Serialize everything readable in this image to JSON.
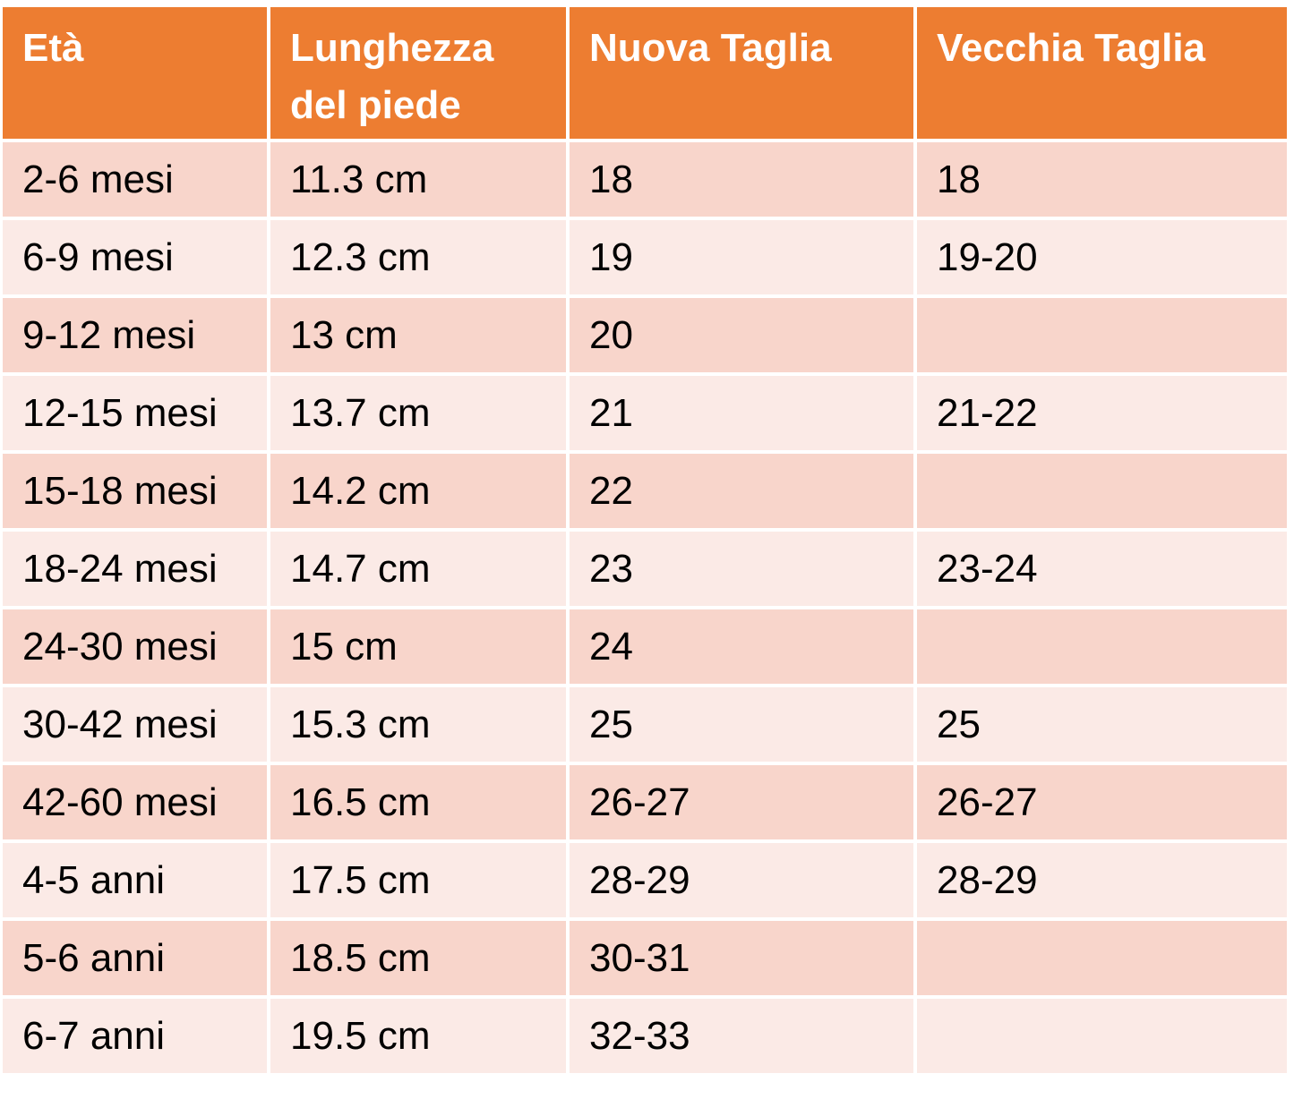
{
  "table": {
    "header": [
      "Età",
      "Lunghezza del piede",
      "Nuova Taglia",
      "Vecchia Taglia"
    ],
    "rows": [
      [
        "2-6 mesi",
        "11.3 cm",
        "18",
        "18"
      ],
      [
        "6-9 mesi",
        "12.3 cm",
        "19",
        "19-20"
      ],
      [
        "9-12 mesi",
        "13 cm",
        "20",
        null
      ],
      [
        "12-15 mesi",
        "13.7 cm",
        "21",
        "21-22"
      ],
      [
        "15-18 mesi",
        "14.2 cm",
        "22",
        null
      ],
      [
        "18-24 mesi",
        "14.7 cm",
        "23",
        "23-24"
      ],
      [
        "24-30 mesi",
        "15 cm",
        "24",
        null
      ],
      [
        "30-42 mesi",
        "15.3 cm",
        "25",
        "25"
      ],
      [
        "42-60 mesi",
        "16.5 cm",
        "26-27",
        "26-27"
      ],
      [
        "4-5 anni",
        "17.5 cm",
        "28-29",
        "28-29"
      ],
      [
        "5-6 anni",
        "18.5 cm",
        "30-31",
        null
      ],
      [
        "6-7 anni",
        "19.5 cm",
        "32-33",
        null
      ]
    ]
  }
}
